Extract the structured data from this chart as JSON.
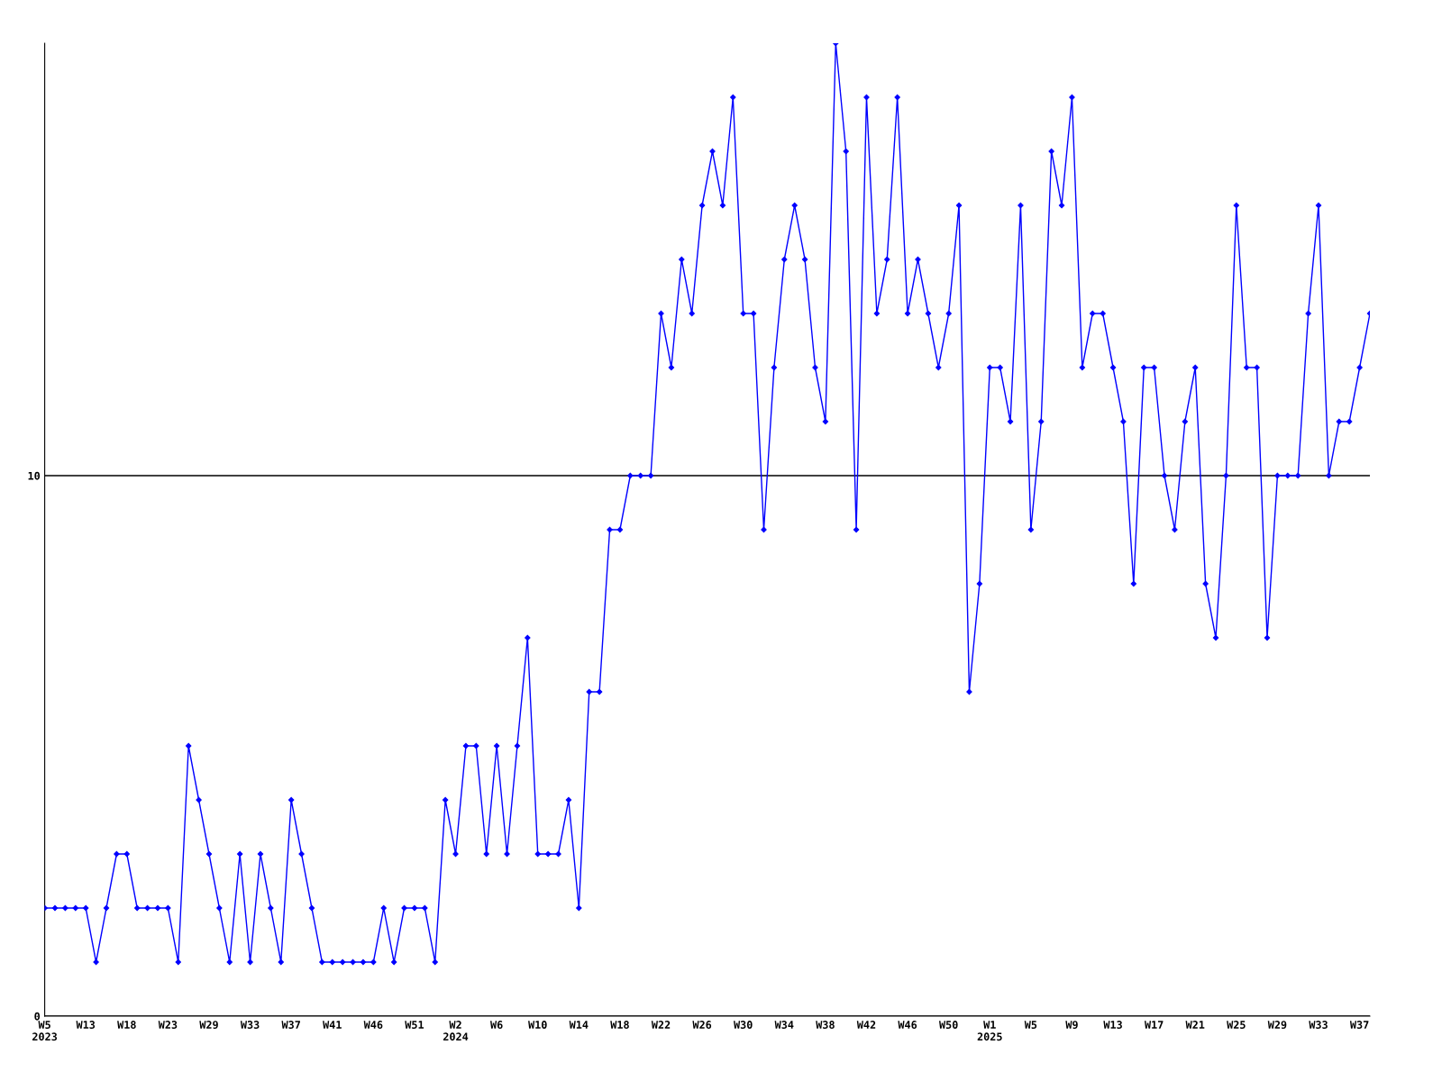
{
  "chart_data": {
    "type": "line",
    "categories": [
      "W5\n2023",
      null,
      null,
      null,
      "W13",
      null,
      null,
      null,
      "W18",
      null,
      null,
      null,
      "W23",
      null,
      null,
      null,
      "W29",
      null,
      null,
      null,
      "W33",
      null,
      null,
      null,
      "W37",
      null,
      null,
      null,
      "W41",
      null,
      null,
      null,
      "W46",
      null,
      null,
      null,
      "W51",
      null,
      null,
      null,
      "W2\n2024",
      null,
      null,
      null,
      "W6",
      null,
      null,
      null,
      "W10",
      null,
      null,
      null,
      "W14",
      null,
      null,
      null,
      "W18",
      null,
      null,
      null,
      "W22",
      null,
      null,
      null,
      "W26",
      null,
      null,
      null,
      "W30",
      null,
      null,
      null,
      "W34",
      null,
      null,
      null,
      "W38",
      null,
      null,
      null,
      "W42",
      null,
      null,
      null,
      "W46",
      null,
      null,
      null,
      "W50",
      null,
      null,
      null,
      "W1\n2025",
      null,
      null,
      null,
      "W5",
      null,
      null,
      null,
      "W9",
      null,
      null,
      null,
      "W13",
      null,
      null,
      null,
      "W17",
      null,
      null,
      null,
      "W21",
      null,
      null,
      null,
      "W25",
      null,
      null,
      null,
      "W29",
      null,
      null,
      null,
      "W33",
      null,
      null,
      null,
      "W37",
      null
    ],
    "series": [
      {
        "color": "#0000ff",
        "values": [
          2,
          2,
          2,
          2,
          2,
          1,
          2,
          3,
          3,
          2,
          2,
          2,
          2,
          1,
          5,
          4,
          3,
          2,
          1,
          3,
          1,
          3,
          2,
          1,
          4,
          3,
          2,
          1,
          1,
          1,
          1,
          1,
          1,
          2,
          1,
          2,
          2,
          2,
          1,
          4,
          3,
          5,
          5,
          3,
          5,
          3,
          5,
          7,
          3,
          3,
          3,
          4,
          2,
          6,
          6,
          9,
          9,
          10,
          10,
          10,
          13,
          12,
          14,
          13,
          15,
          16,
          15,
          17,
          13,
          13,
          9,
          12,
          14,
          15,
          14,
          12,
          11,
          18,
          16,
          9,
          17,
          13,
          14,
          17,
          13,
          14,
          13,
          12,
          13,
          15,
          6,
          8,
          12,
          12,
          11,
          15,
          9,
          11,
          16,
          15,
          17,
          12,
          13,
          13,
          12,
          11,
          8,
          12,
          12,
          10,
          9,
          11,
          12,
          8,
          7,
          10,
          15,
          12,
          12,
          7,
          10,
          10,
          10,
          13,
          15,
          10,
          11,
          11,
          12,
          13
        ]
      }
    ],
    "ylim": [
      0,
      18
    ],
    "yticks": [
      0,
      10
    ],
    "grid": "y",
    "marker": "diamond",
    "line_style": "solid"
  }
}
